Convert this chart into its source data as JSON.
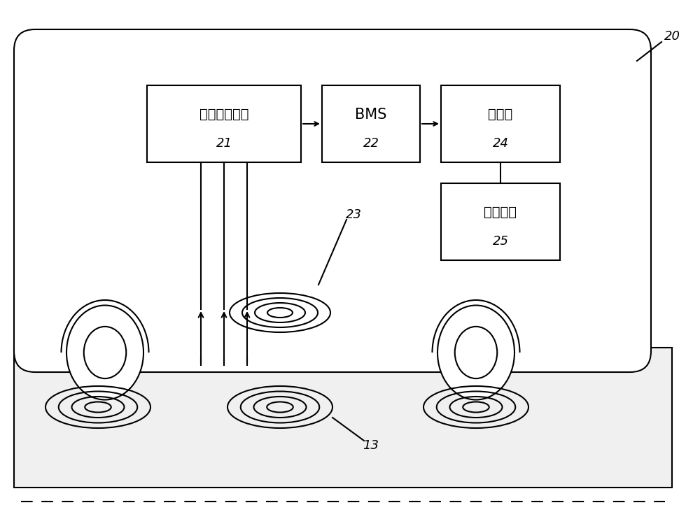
{
  "bg_color": "#ffffff",
  "line_color": "#000000",
  "label_20": "20",
  "label_21": "21",
  "label_22": "22",
  "label_23": "23",
  "label_24": "24",
  "label_25": "25",
  "label_13": "13",
  "box21_text": "整流稳压模块",
  "box22_text": "BMS",
  "box24_text": "电池包",
  "box25_text": "直流电机",
  "font_size_chinese": 14,
  "font_size_label": 13
}
